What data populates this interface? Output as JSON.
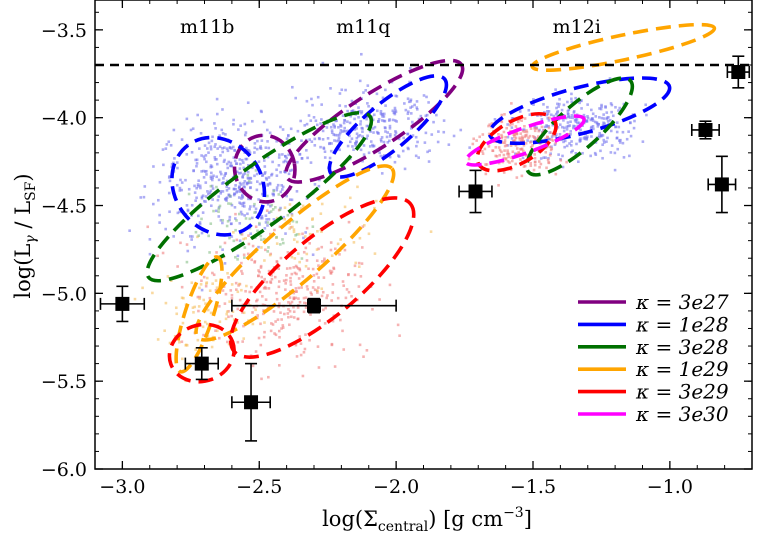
{
  "chart_data": {
    "type": "scatter",
    "title": "",
    "xlabel": "log(Σ_central) [g cm^-3]",
    "ylabel": "log(L_γ / L_SF)",
    "xlabel_parts": {
      "a": "log(Σ",
      "sub": "central",
      "b": ") [g cm",
      "sup": "−3",
      "c": "]"
    },
    "ylabel_parts": {
      "a": "log(L",
      "sub1": "γ",
      "b": " / L",
      "sub2": "SF",
      "c": ")"
    },
    "xlim": [
      -3.1,
      -0.7
    ],
    "ylim": [
      -6.0,
      -3.33
    ],
    "xticks": [
      -3.0,
      -2.5,
      -2.0,
      -1.5,
      -1.0
    ],
    "xtick_labels": [
      "−3.0",
      "−2.5",
      "−2.0",
      "−1.5",
      "−1.0"
    ],
    "yticks": [
      -6.0,
      -5.5,
      -5.0,
      -4.5,
      -4.0,
      -3.5
    ],
    "ytick_labels": [
      "−6.0",
      "−5.5",
      "−5.0",
      "−4.5",
      "−4.0",
      "−3.5"
    ],
    "reference_line": {
      "y": -3.7,
      "style": "dashed",
      "color": "#000000"
    },
    "annotations": [
      {
        "text": "m11b",
        "x": -2.69,
        "y": -3.5
      },
      {
        "text": "m11q",
        "x": -2.12,
        "y": -3.5
      },
      {
        "text": "m12i",
        "x": -1.34,
        "y": -3.5
      }
    ],
    "legend_position": "lower-right",
    "series": [
      {
        "name": "κ = 3e27",
        "color": "#800080",
        "ellipses": [
          {
            "cx": -2.48,
            "cy": -4.29,
            "rx": 0.11,
            "ry": 0.19,
            "angle": 10
          },
          {
            "cx": -2.08,
            "cy": -4.02,
            "rx": 0.38,
            "ry": 0.15,
            "angle": 33
          }
        ]
      },
      {
        "name": "κ = 1e28",
        "color": "#0000ff",
        "ellipses": [
          {
            "cx": -2.65,
            "cy": -4.39,
            "rx": 0.16,
            "ry": 0.29,
            "angle": 35
          },
          {
            "cx": -2.03,
            "cy": -4.05,
            "rx": 0.27,
            "ry": 0.13,
            "angle": 40
          },
          {
            "cx": -1.33,
            "cy": -3.96,
            "rx": 0.34,
            "ry": 0.13,
            "angle": 15
          }
        ]
      },
      {
        "name": "κ = 3e28",
        "color": "#007000",
        "ellipses": [
          {
            "cx": -2.5,
            "cy": -4.45,
            "rx": 0.5,
            "ry": 0.17,
            "angle": 36
          },
          {
            "cx": -1.33,
            "cy": -4.05,
            "rx": 0.25,
            "ry": 0.12,
            "angle": 42
          }
        ]
      },
      {
        "name": "κ = 1e29",
        "color": "#ffa500",
        "ellipses": [
          {
            "cx": -2.72,
            "cy": -5.12,
            "rx": 0.22,
            "ry": 0.08,
            "angle": 72
          },
          {
            "cx": -2.37,
            "cy": -4.77,
            "rx": 0.47,
            "ry": 0.16,
            "angle": 41
          },
          {
            "cx": -1.17,
            "cy": -3.6,
            "rx": 0.34,
            "ry": 0.07,
            "angle": 12
          }
        ]
      },
      {
        "name": "κ = 3e29",
        "color": "#ff0000",
        "ellipses": [
          {
            "cx": -2.71,
            "cy": -5.34,
            "rx": 0.12,
            "ry": 0.16,
            "angle": 20
          },
          {
            "cx": -2.27,
            "cy": -4.91,
            "rx": 0.42,
            "ry": 0.22,
            "angle": 40
          },
          {
            "cx": -1.56,
            "cy": -4.14,
            "rx": 0.16,
            "ry": 0.12,
            "angle": 30
          }
        ]
      },
      {
        "name": "κ = 3e30",
        "color": "#ff00ff",
        "ellipses": [
          {
            "cx": -1.53,
            "cy": -4.13,
            "rx": 0.23,
            "ry": 0.07,
            "angle": 20
          }
        ]
      }
    ],
    "scatter_clouds": [
      {
        "color": "#7777ee",
        "n": 1050,
        "regions": [
          {
            "cx": -2.6,
            "cy": -4.35,
            "sx": 0.22,
            "sy": 0.28,
            "w": 0.45
          },
          {
            "cx": -2.1,
            "cy": -4.05,
            "sx": 0.22,
            "sy": 0.18,
            "w": 0.3
          },
          {
            "cx": -1.35,
            "cy": -4.05,
            "sx": 0.18,
            "sy": 0.14,
            "w": 0.25
          }
        ]
      },
      {
        "color": "#f08080",
        "n": 550,
        "regions": [
          {
            "cx": -2.4,
            "cy": -5.0,
            "sx": 0.25,
            "sy": 0.3,
            "w": 0.55
          },
          {
            "cx": -1.55,
            "cy": -4.15,
            "sx": 0.12,
            "sy": 0.13,
            "w": 0.45
          }
        ]
      },
      {
        "color": "#f5c060",
        "n": 140,
        "regions": [
          {
            "cx": -2.7,
            "cy": -5.1,
            "sx": 0.15,
            "sy": 0.25,
            "w": 0.5
          },
          {
            "cx": -2.3,
            "cy": -4.7,
            "sx": 0.2,
            "sy": 0.25,
            "w": 0.5
          }
        ]
      },
      {
        "color": "#88c088",
        "n": 70,
        "regions": [
          {
            "cx": -2.55,
            "cy": -4.6,
            "sx": 0.2,
            "sy": 0.2,
            "w": 1.0
          }
        ]
      }
    ],
    "observations": [
      {
        "x": -3.0,
        "y": -5.06,
        "xerr": 0.08,
        "yerr": 0.1
      },
      {
        "x": -2.71,
        "y": -5.4,
        "xerr": 0.06,
        "yerr": 0.09
      },
      {
        "x": -2.53,
        "y": -5.62,
        "xerr": 0.07,
        "yerr": 0.22
      },
      {
        "x": -2.3,
        "y": -5.07,
        "xerr": 0.3,
        "yerr": 0.04
      },
      {
        "x": -1.71,
        "y": -4.42,
        "xerr": 0.06,
        "yerr": 0.12
      },
      {
        "x": -0.87,
        "y": -4.07,
        "xerr": 0.05,
        "yerr": 0.05
      },
      {
        "x": -0.81,
        "y": -4.38,
        "xerr": 0.05,
        "yerr": 0.16
      },
      {
        "x": -0.75,
        "y": -3.74,
        "xerr": 0.04,
        "yerr": 0.09
      }
    ]
  }
}
